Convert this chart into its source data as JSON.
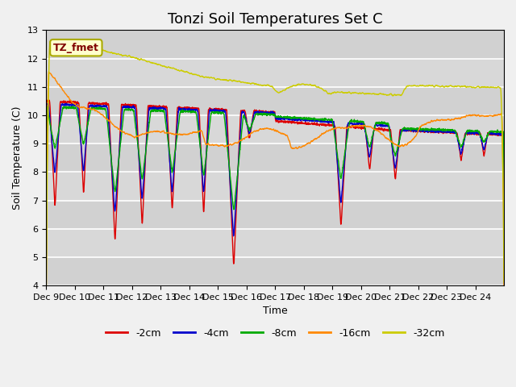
{
  "title": "Tonzi Soil Temperatures Set C",
  "xlabel": "Time",
  "ylabel": "Soil Temperature (C)",
  "ylim": [
    4.0,
    13.0
  ],
  "yticks": [
    4.0,
    5.0,
    6.0,
    7.0,
    8.0,
    9.0,
    10.0,
    11.0,
    12.0,
    13.0
  ],
  "xtick_labels": [
    "Dec 9",
    "Dec 10",
    "Dec 11",
    "Dec 12",
    "Dec 13",
    "Dec 14",
    "Dec 15",
    "Dec 16",
    "Dec 17",
    "Dec 18",
    "Dec 19",
    "Dec 20",
    "Dec 21",
    "Dec 22",
    "Dec 23",
    "Dec 24"
  ],
  "legend_label": "TZ_fmet",
  "series_labels": [
    "-2cm",
    "-4cm",
    "-8cm",
    "-16cm",
    "-32cm"
  ],
  "series_colors": [
    "#dd0000",
    "#0000cc",
    "#00aa00",
    "#ff8800",
    "#cccc00"
  ],
  "plot_bg_color": "#d8d8d8",
  "fig_bg_color": "#f0f0f0",
  "title_fontsize": 13,
  "axis_fontsize": 9,
  "tick_fontsize": 8
}
